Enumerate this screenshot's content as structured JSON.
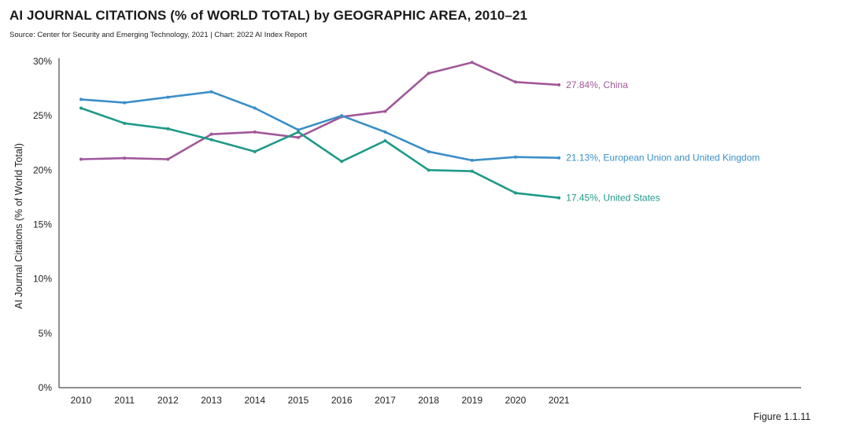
{
  "header": {
    "title": "AI JOURNAL CITATIONS (% of WORLD TOTAL) by GEOGRAPHIC AREA, 2010–21",
    "source": "Source: Center for Security and Emerging Technology, 2021 | Chart: 2022 AI Index Report"
  },
  "footer": {
    "figure_label": "Figure 1.1.11"
  },
  "colors": {
    "china": "#a0589a",
    "eu_uk": "#3b8fc7",
    "us": "#1f9a88",
    "axis": "#222222"
  },
  "chart_data": {
    "type": "line",
    "title": "AI JOURNAL CITATIONS (% of WORLD TOTAL) by GEOGRAPHIC AREA, 2010–21",
    "xlabel": "",
    "ylabel": "AI Journal Citations (% of World Total)",
    "ylim": [
      0,
      30
    ],
    "yticks": [
      0,
      5,
      10,
      15,
      20,
      25,
      30
    ],
    "ytick_labels": [
      "0%",
      "5%",
      "10%",
      "15%",
      "20%",
      "25%",
      "30%"
    ],
    "x": [
      "2010",
      "2011",
      "2012",
      "2013",
      "2014",
      "2015",
      "2016",
      "2017",
      "2018",
      "2019",
      "2020",
      "2021"
    ],
    "grid": false,
    "series": [
      {
        "name": "China",
        "key": "china",
        "end_label": "27.84%, China",
        "values": [
          21.0,
          21.1,
          21.0,
          23.3,
          23.5,
          23.0,
          24.9,
          25.4,
          28.9,
          29.9,
          28.1,
          27.84
        ]
      },
      {
        "name": "European Union and United Kingdom",
        "key": "eu_uk",
        "end_label": "21.13%, European Union and United Kingdom",
        "values": [
          26.5,
          26.2,
          26.7,
          27.2,
          25.7,
          23.7,
          25.0,
          23.5,
          21.7,
          20.9,
          21.2,
          21.13
        ]
      },
      {
        "name": "United States",
        "key": "us",
        "end_label": "17.45%, United States",
        "values": [
          25.7,
          24.3,
          23.8,
          22.8,
          21.7,
          23.5,
          20.8,
          22.7,
          20.0,
          19.9,
          17.9,
          17.45
        ]
      }
    ]
  }
}
